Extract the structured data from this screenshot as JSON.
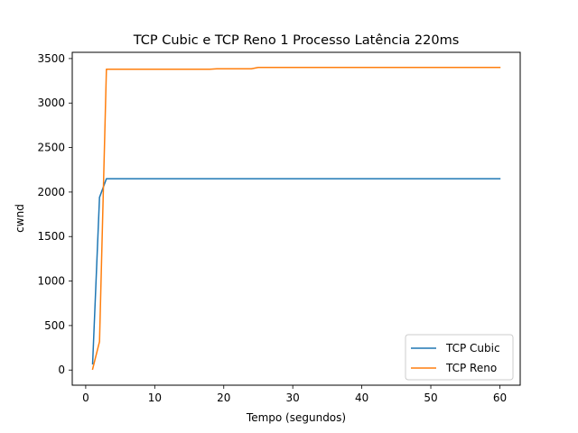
{
  "chart_data": {
    "type": "line",
    "title": "TCP Cubic e TCP Reno 1 Processo Latência 220ms",
    "xlabel": "Tempo (segundos)",
    "ylabel": "cwnd",
    "xlim": [
      -1.95,
      62.95
    ],
    "ylim": [
      -170,
      3570
    ],
    "xticks": [
      0,
      10,
      20,
      30,
      40,
      50,
      60
    ],
    "yticks": [
      0,
      500,
      1000,
      1500,
      2000,
      2500,
      3000,
      3500
    ],
    "grid": false,
    "legend_position": "lower-right",
    "series": [
      {
        "name": "TCP Cubic",
        "color": "#1f77b4",
        "x": [
          1,
          2,
          3,
          4,
          10,
          20,
          30,
          40,
          50,
          60
        ],
        "y": [
          70,
          1940,
          2150,
          2150,
          2150,
          2150,
          2150,
          2150,
          2150,
          2150
        ]
      },
      {
        "name": "TCP Reno",
        "color": "#ff7f0e",
        "x": [
          1,
          2,
          3,
          4,
          10,
          18,
          19,
          24,
          25,
          30,
          40,
          50,
          60
        ],
        "y": [
          10,
          320,
          3380,
          3380,
          3380,
          3380,
          3385,
          3385,
          3400,
          3400,
          3400,
          3400,
          3400
        ]
      }
    ]
  }
}
